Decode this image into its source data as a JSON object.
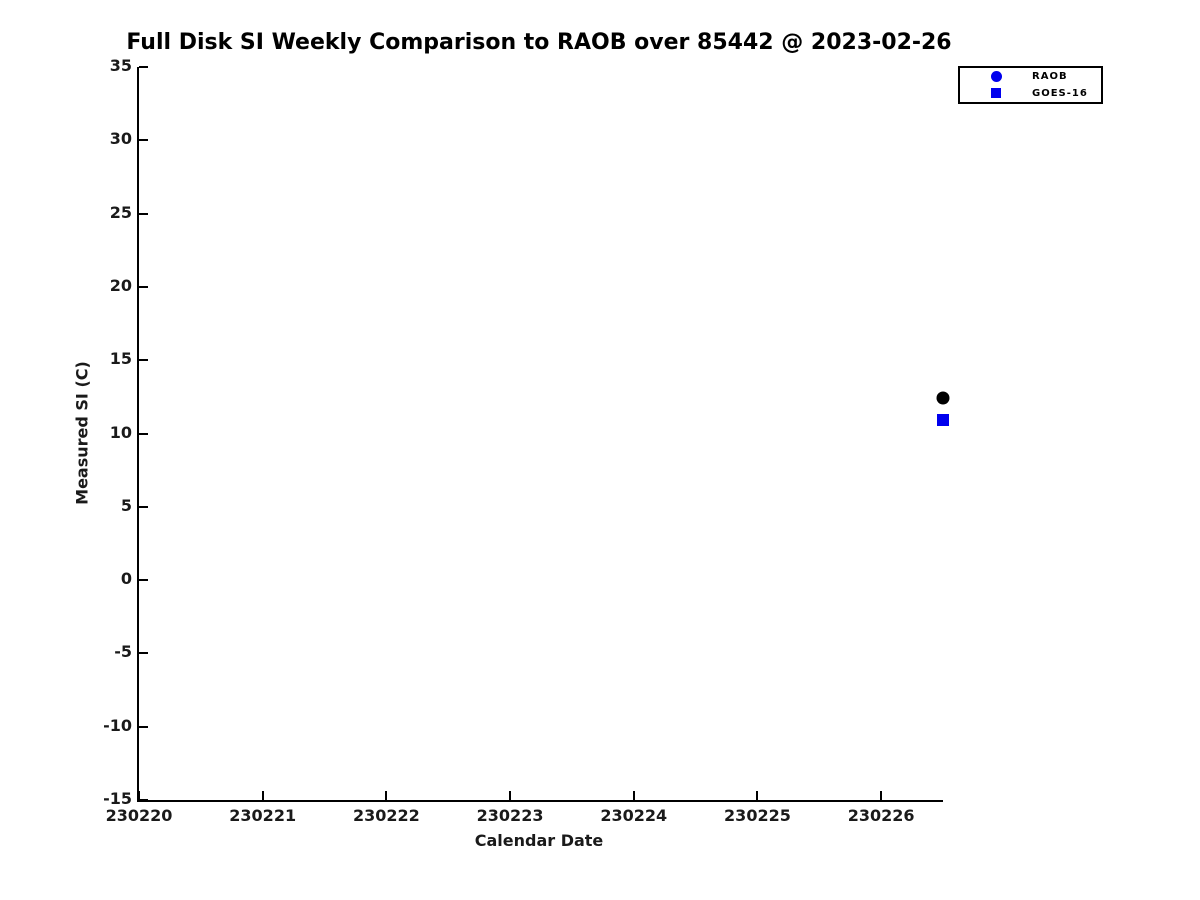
{
  "title": "Full Disk SI Weekly Comparison to RAOB over 85442 @ 2023-02-26",
  "chart_data": {
    "type": "scatter",
    "title": "Full Disk SI Weekly Comparison to RAOB over 85442 @ 2023-02-26",
    "xlabel": "Calendar Date",
    "ylabel": "Measured SI (C)",
    "xlim": [
      230220,
      230226.5
    ],
    "ylim": [
      -15,
      35
    ],
    "x_ticks": [
      230220,
      230221,
      230222,
      230223,
      230224,
      230225,
      230226
    ],
    "y_ticks": [
      35,
      30,
      25,
      20,
      15,
      10,
      5,
      0,
      -5,
      -10,
      -15
    ],
    "grid": false,
    "axis_style": "left-bottom-only, inward ticks",
    "legend_position": "top-right",
    "series": [
      {
        "name": "RAOB",
        "marker": "circle",
        "legend_color": "#0000ee",
        "point_color": "#000000",
        "marker_size_px": 13,
        "x": [
          230226.5
        ],
        "y": [
          12.4
        ]
      },
      {
        "name": "GOES-16",
        "marker": "square",
        "legend_color": "#0000ee",
        "point_color": "#0000ee",
        "marker_size_px": 12,
        "x": [
          230226.5
        ],
        "y": [
          10.9
        ]
      }
    ]
  },
  "colors": {
    "background": "#ffffff",
    "axis": "#000000",
    "text": "#1a1a1a",
    "blue": "#0000ee",
    "black": "#000000"
  }
}
